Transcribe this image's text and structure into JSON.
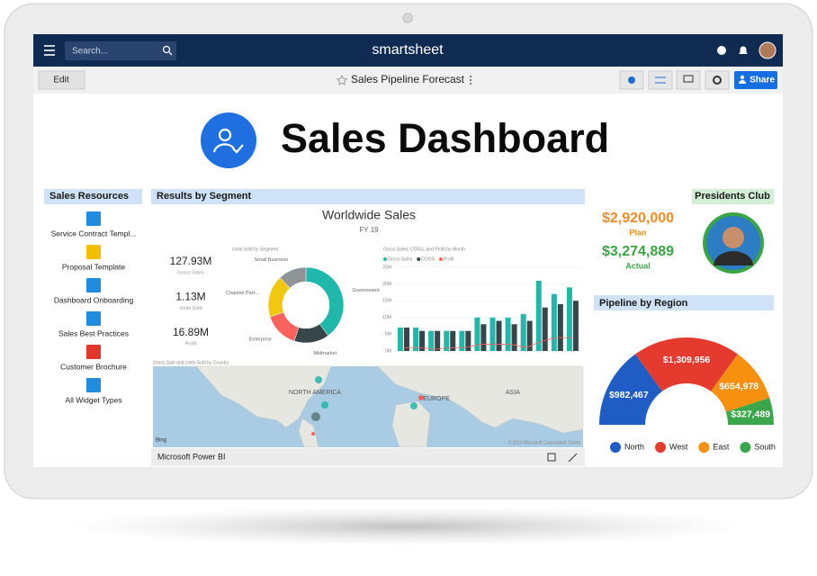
{
  "app": {
    "brand": "smartsheet",
    "search_placeholder": "Search..."
  },
  "toolbar": {
    "edit": "Edit",
    "sheet_title": "Sales Pipeline Forecast",
    "share": "Share"
  },
  "dashboard_title": "Sales Dashboard",
  "resources": {
    "title": "Sales Resources",
    "items": [
      "Service Contract Templ...",
      "Proposal Template",
      "Dashboard Onboarding",
      "Sales Best Practices",
      "Customer Brochure",
      "All Widget Types"
    ]
  },
  "segment": {
    "title": "Results by Segment",
    "report_title": "Worldwide Sales",
    "report_subtitle": "FY 19",
    "kpis": [
      {
        "value": "127.93M",
        "label": "Gross Sales"
      },
      {
        "value": "1.13M",
        "label": "Units Sold"
      },
      {
        "value": "16.89M",
        "label": "Profit"
      }
    ],
    "map": {
      "title": "Gross Sale and Units Sold by Country",
      "regions": [
        "NORTH AMERICA",
        "EUROPE",
        "ASIA"
      ],
      "provider": "Bing",
      "credits": "© 2019 Microsoft Corporation Terms"
    },
    "footer": "Microsoft Power BI"
  },
  "presidents_club": {
    "title": "Presidents Club",
    "plan_value": "$2,920,000",
    "plan_label": "Plan",
    "actual_value": "$3,274,889",
    "actual_label": "Actual"
  },
  "chart_data": [
    {
      "type": "pie",
      "title": "Units Sold by Segment",
      "categories": [
        "Government",
        "Midmarker",
        "Enterprise",
        "Channel Part...",
        "Small Business"
      ],
      "values": [
        40,
        15,
        15,
        18,
        12
      ],
      "colors": [
        "#1fb8aa",
        "#374649",
        "#fd625e",
        "#f2c80f",
        "#8d9396"
      ]
    },
    {
      "type": "bar",
      "title": "Gross Sales, COGS, and Profit by Month",
      "categories": [
        null,
        null,
        null,
        null,
        null,
        null,
        null,
        null,
        null,
        null,
        null,
        null
      ],
      "series": [
        {
          "name": "Gross Sales",
          "color": "#1fb8aa",
          "values": [
            7,
            7,
            6,
            6,
            6,
            10,
            10,
            10,
            11,
            21,
            17,
            19
          ]
        },
        {
          "name": "COGS",
          "color": "#374649",
          "values": [
            7,
            6,
            6,
            6,
            6,
            8,
            9,
            8,
            9,
            13,
            14,
            15
          ]
        },
        {
          "name": "Profit",
          "color": "#fd625e",
          "values": [
            1,
            1,
            0.5,
            1,
            1,
            2,
            2,
            2,
            1,
            3,
            4,
            4
          ]
        }
      ],
      "ylim": [
        0,
        25
      ],
      "yticks": [
        {
          "value": 0,
          "label": "0M"
        },
        {
          "value": 5,
          "label": "5M"
        },
        {
          "value": 10,
          "label": "10M"
        },
        {
          "value": 15,
          "label": "15M"
        },
        {
          "value": 20,
          "label": "20M"
        },
        {
          "value": 25,
          "label": "25M"
        }
      ]
    },
    {
      "type": "half-donut",
      "title": "Pipeline by Region",
      "categories": [
        "North",
        "West",
        "East",
        "South"
      ],
      "values": [
        982467,
        1309956,
        654978,
        327489
      ],
      "value_labels": [
        "$982,467",
        "$1,309,956",
        "$654,978",
        "$327,489"
      ],
      "colors": [
        "#1f5cc4",
        "#e53a2e",
        "#f7900f",
        "#3aa84a"
      ]
    }
  ]
}
